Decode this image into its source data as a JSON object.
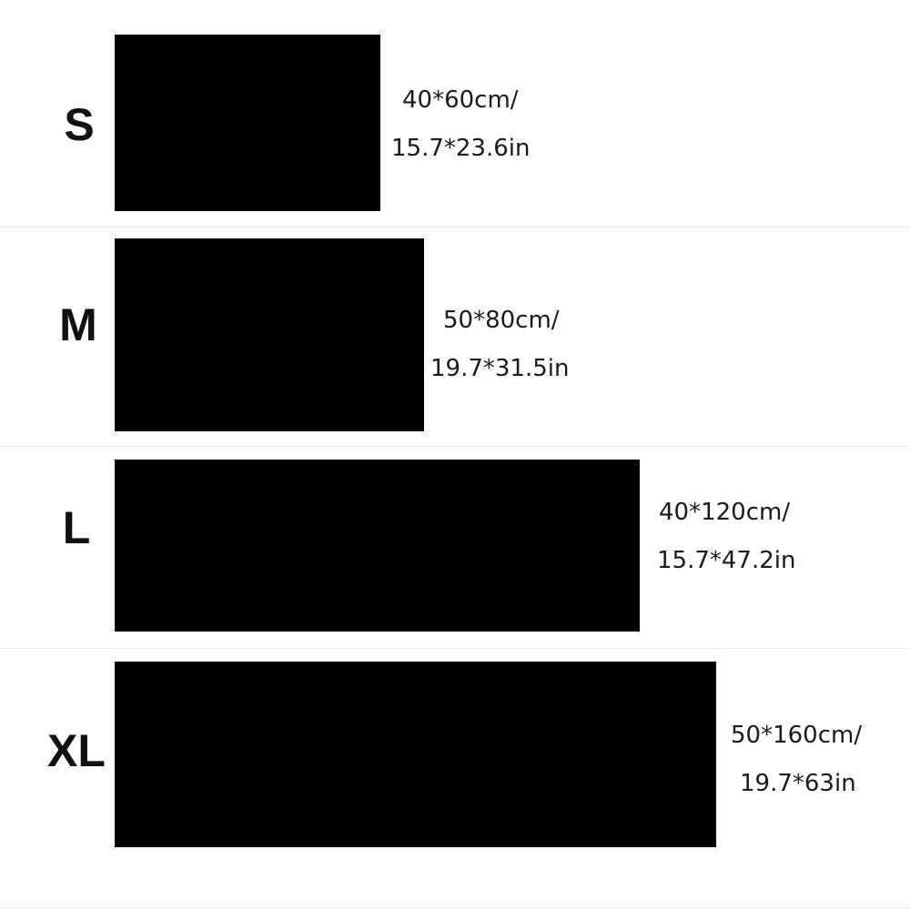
{
  "sizes": [
    {
      "label": "S",
      "cm": "40*60cm/",
      "inch": "15.7*23.6in"
    },
    {
      "label": "M",
      "cm": "50*80cm/",
      "inch": "19.7*31.5in"
    },
    {
      "label": "L",
      "cm": "40*120cm/",
      "inch": "15.7*47.2in"
    },
    {
      "label": "XL",
      "cm": "50*160cm/",
      "inch": "19.7*63in"
    }
  ],
  "colors": {
    "swatch": "#000000",
    "background": "#ffffff"
  }
}
